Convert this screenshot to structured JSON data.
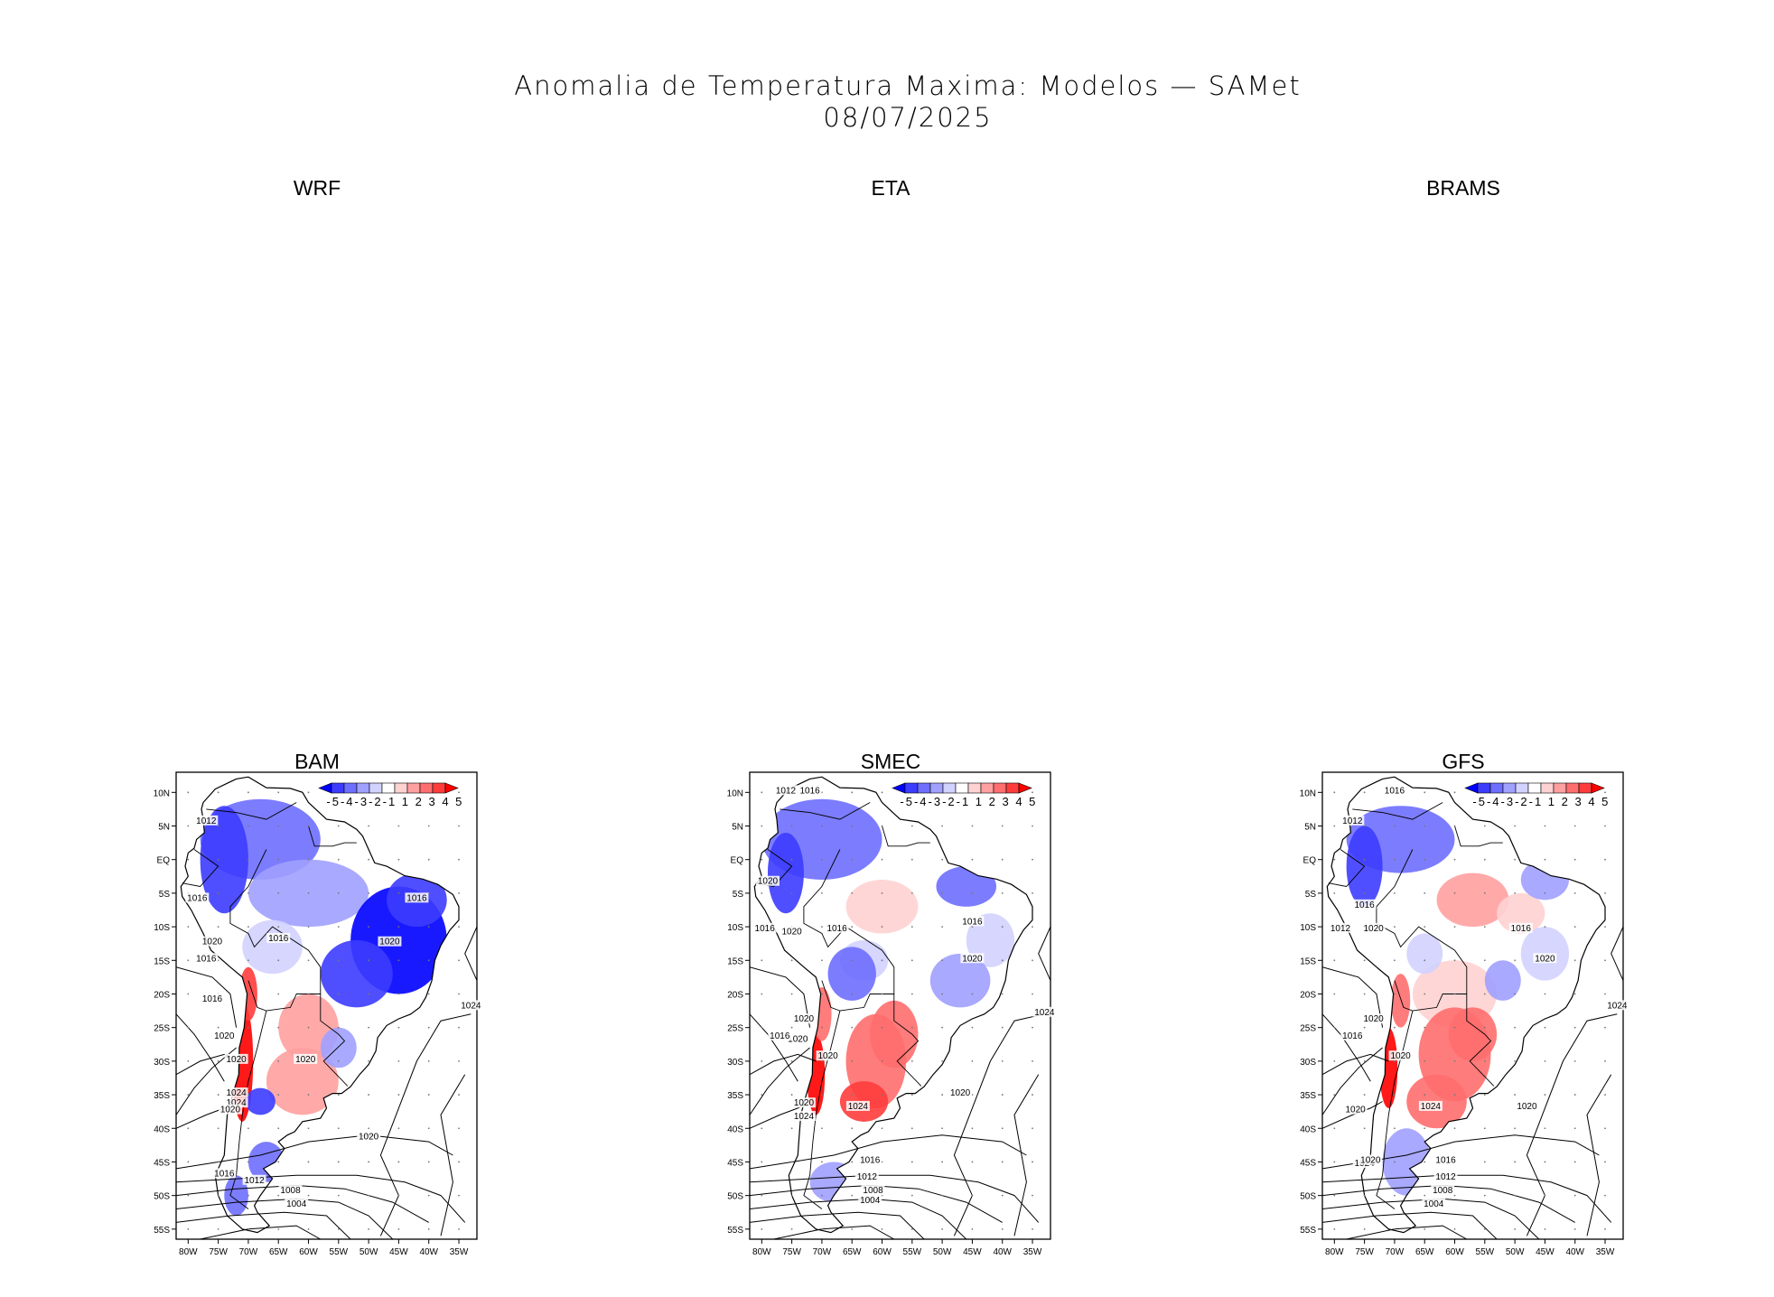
{
  "title": {
    "line1": "Anomalia de Temperatura Maxima: Modelos — SAMet",
    "line2": "08/07/2025"
  },
  "panels": [
    {
      "name": "WRF",
      "has_map": false
    },
    {
      "name": "ETA",
      "has_map": false
    },
    {
      "name": "BRAMS",
      "has_map": false
    },
    {
      "name": "BAM",
      "has_map": true
    },
    {
      "name": "SMEC",
      "has_map": true
    },
    {
      "name": "GFS",
      "has_map": true
    }
  ],
  "map": {
    "lat_labels": [
      "10N",
      "5N",
      "EQ",
      "5S",
      "10S",
      "15S",
      "20S",
      "25S",
      "30S",
      "35S",
      "40S",
      "45S",
      "50S",
      "55S"
    ],
    "lon_labels": [
      "80W",
      "75W",
      "70W",
      "65W",
      "60W",
      "55W",
      "50W",
      "45W",
      "40W",
      "35W"
    ],
    "colorbar": {
      "labels_text": "-5-4-3-2-1 1 2 3 4 5",
      "levels": [
        -5,
        -4,
        -3,
        -2,
        -1,
        1,
        2,
        3,
        4,
        5
      ],
      "colors": [
        "#0000ff",
        "#3c3cff",
        "#6e6eff",
        "#a0a0ff",
        "#d2d2ff",
        "#ffffff",
        "#ffd2d2",
        "#ffa0a0",
        "#ff6e6e",
        "#ff3c3c",
        "#ff0000"
      ]
    },
    "isobar_labels": {
      "BAM": [
        "1012",
        "1016",
        "1016",
        "1020",
        "1016",
        "1016",
        "1020",
        "1016",
        "1020",
        "1020",
        "1024",
        "1024",
        "1020",
        "1020",
        "1016",
        "1012",
        "1008",
        "1004",
        "1020",
        "1024"
      ],
      "SMEC": [
        "1012",
        "1016",
        "1020",
        "1016",
        "1020",
        "1016",
        "1016",
        "1020",
        "1020",
        "1016",
        "1020",
        "1020",
        "1024",
        "1024",
        "1020",
        "1016",
        "1012",
        "1008",
        "1004",
        "1020",
        "1024"
      ],
      "GFS": [
        "1016",
        "1012",
        "1016",
        "1012",
        "1020",
        "1016",
        "1020",
        "1020",
        "1016",
        "1020",
        "1020",
        "1024",
        "1024",
        "1020",
        "1016",
        "1012",
        "1008",
        "1004",
        "1020",
        "1024"
      ]
    }
  }
}
